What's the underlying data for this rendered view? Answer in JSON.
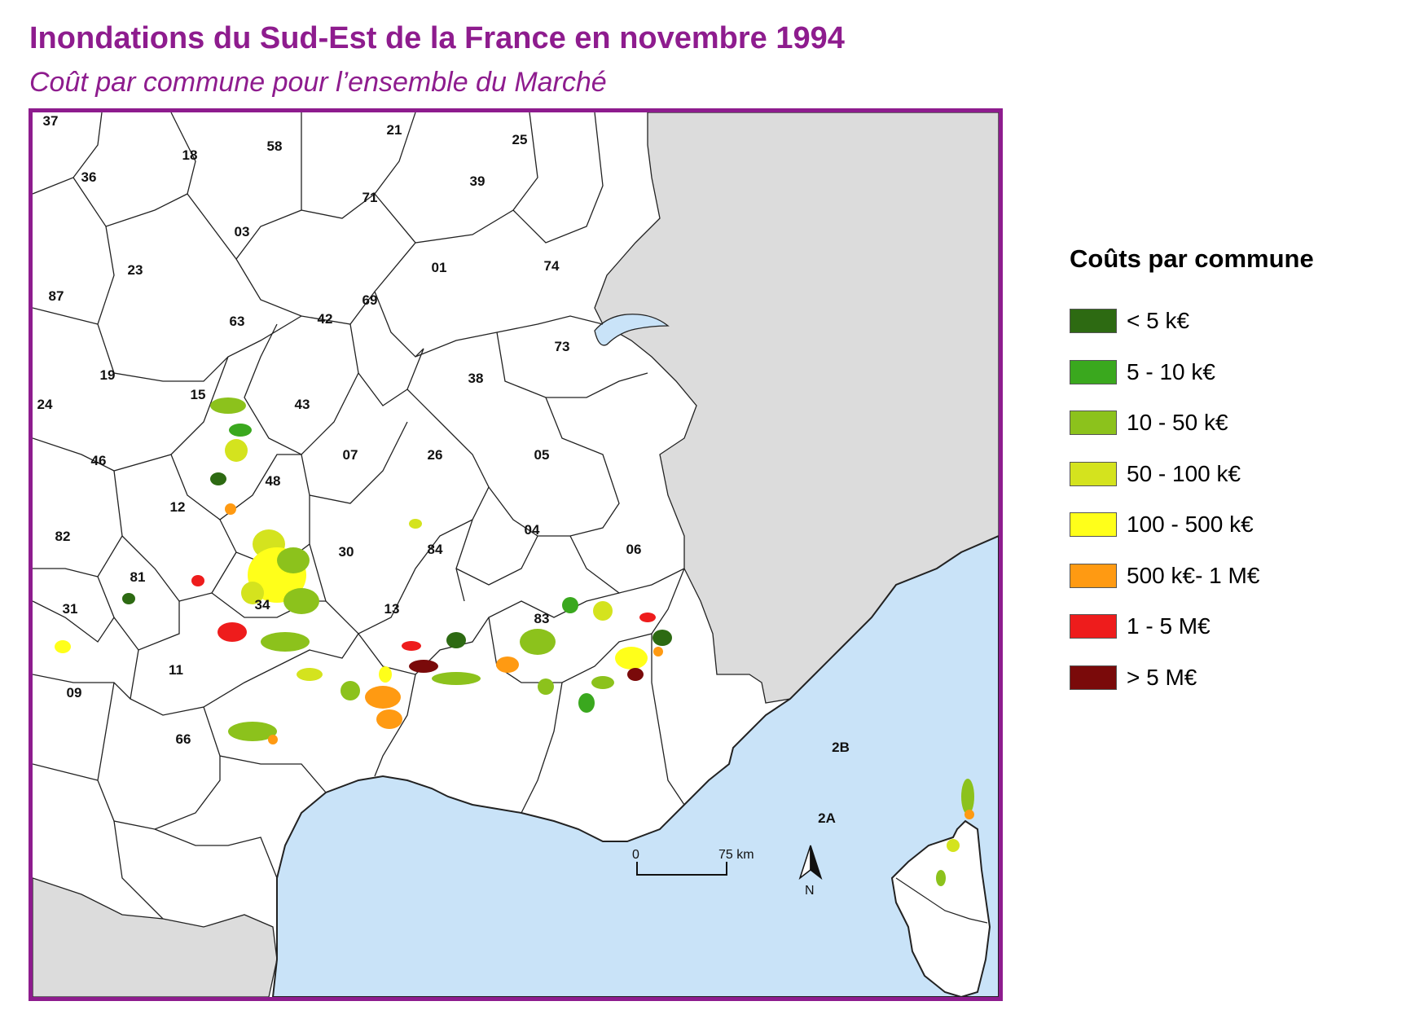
{
  "header": {
    "title": "Inondations du Sud-Est de la France en novembre 1994",
    "subtitle": "Coût par commune pour l’ensemble du Marché"
  },
  "colors": {
    "frame": "#8e1c8e",
    "sea": "#c9e3f8",
    "foreign_land": "#dcdcdc",
    "land": "#ffffff",
    "boundary": "#222222"
  },
  "legend": {
    "title": "Coûts par commune",
    "items": [
      {
        "label": "< 5 k€",
        "color": "#2d6a12"
      },
      {
        "label": "5 - 10 k€",
        "color": "#3aa81e"
      },
      {
        "label": "10 - 50 k€",
        "color": "#8cc21c"
      },
      {
        "label": "50 - 100 k€",
        "color": "#d4e31e"
      },
      {
        "label": "100 - 500 k€",
        "color": "#ffff1a"
      },
      {
        "label": "500 k€- 1 M€",
        "color": "#ff9a12"
      },
      {
        "label": "1 - 5 M€",
        "color": "#ee1c1c"
      },
      {
        "label": "> 5 M€",
        "color": "#7a0a0a"
      }
    ]
  },
  "departments": [
    "37",
    "18",
    "58",
    "21",
    "25",
    "36",
    "39",
    "71",
    "03",
    "74",
    "23",
    "01",
    "87",
    "69",
    "63",
    "42",
    "73",
    "19",
    "38",
    "15",
    "43",
    "24",
    "07",
    "26",
    "05",
    "46",
    "48",
    "12",
    "04",
    "82",
    "84",
    "06",
    "30",
    "81",
    "13",
    "34",
    "83",
    "31",
    "11",
    "09",
    "66",
    "2B",
    "2A"
  ],
  "scale_bar": {
    "start_label": "0",
    "end_label": "75 km"
  },
  "north_arrow": {
    "label": "N"
  }
}
